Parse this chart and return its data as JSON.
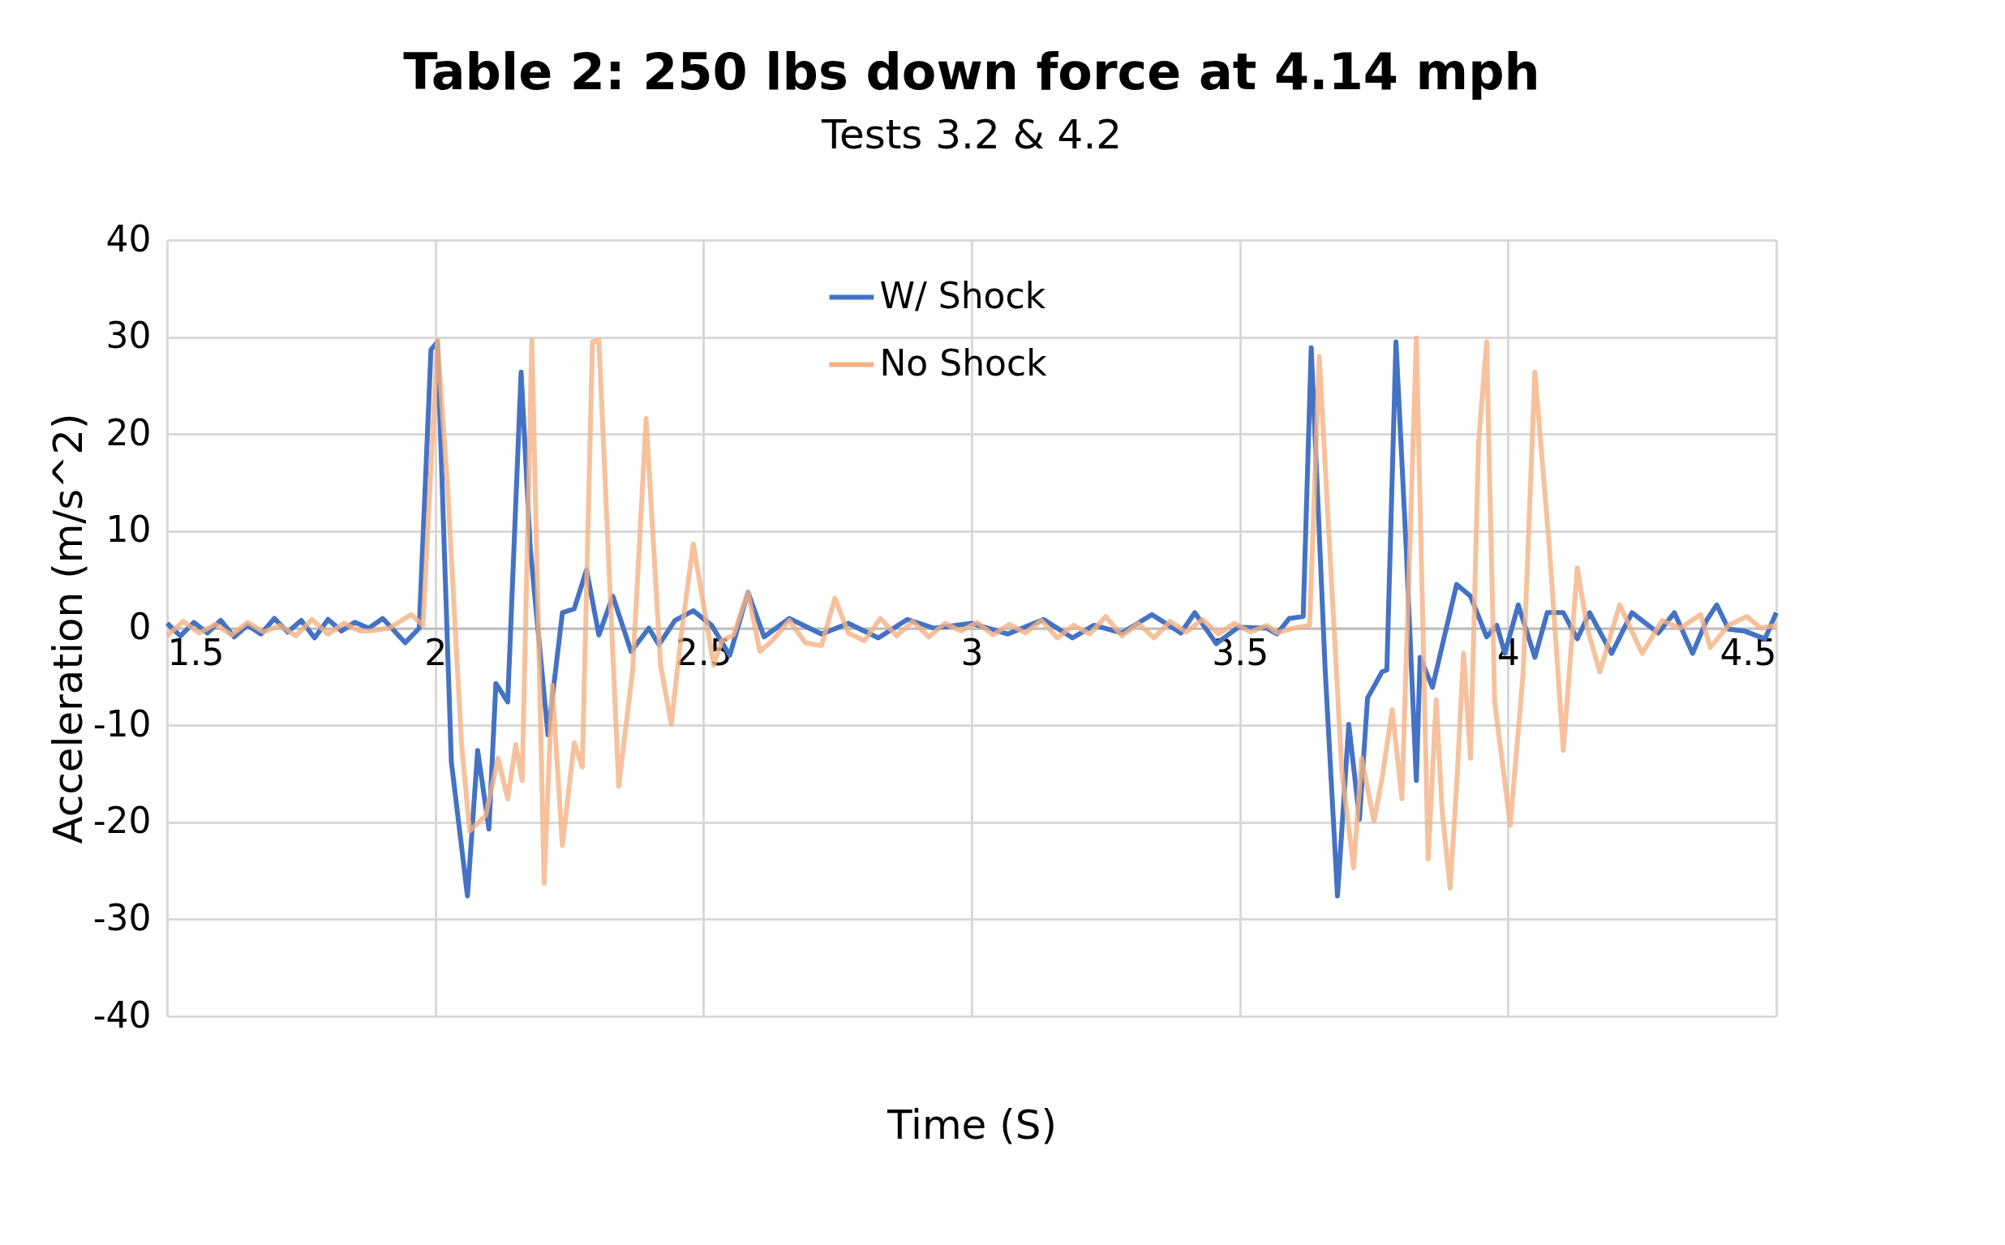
{
  "chart_data": {
    "type": "line",
    "title": "Table 2: 250 lbs down force at 4.14 mph",
    "subtitle": "Tests 3.2 & 4.2",
    "xlabel": "Time (S)",
    "ylabel": "Acceleration (m/s^2)",
    "xlim": [
      1.5,
      4.5
    ],
    "ylim": [
      -40,
      40
    ],
    "xticks": [
      1.5,
      2,
      2.5,
      3,
      3.5,
      4,
      4.5
    ],
    "yticks": [
      -40,
      -30,
      -20,
      -10,
      0,
      10,
      20,
      30,
      40
    ],
    "grid": true,
    "legend": "top",
    "marker": "none",
    "line_style": "solid",
    "series": [
      {
        "name": "W/ Shock",
        "color": "#4472c4",
        "x": [
          1.5,
          1.525,
          1.55,
          1.575,
          1.6,
          1.625,
          1.65,
          1.675,
          1.7,
          1.725,
          1.75,
          1.775,
          1.8,
          1.825,
          1.85,
          1.876,
          1.902,
          1.944,
          1.97,
          1.992,
          2.004,
          2.03,
          2.06,
          2.079,
          2.1,
          2.113,
          2.135,
          2.16,
          2.177,
          2.21,
          2.237,
          2.259,
          2.282,
          2.305,
          2.331,
          2.365,
          2.398,
          2.417,
          2.447,
          2.481,
          2.515,
          2.549,
          2.583,
          2.613,
          2.66,
          2.72,
          2.77,
          2.826,
          2.88,
          2.93,
          3.0,
          3.067,
          3.134,
          3.188,
          3.228,
          3.28,
          3.336,
          3.39,
          3.416,
          3.456,
          3.497,
          3.55,
          3.569,
          3.592,
          3.618,
          3.633,
          3.659,
          3.682,
          3.703,
          3.723,
          3.738,
          3.765,
          3.774,
          3.791,
          3.81,
          3.829,
          3.836,
          3.859,
          3.904,
          3.93,
          3.96,
          3.979,
          3.994,
          4.019,
          4.05,
          4.073,
          4.103,
          4.129,
          4.152,
          4.193,
          4.231,
          4.28,
          4.31,
          4.344,
          4.37,
          4.389,
          4.411,
          4.441,
          4.479,
          4.5
        ],
        "values": [
          0.5,
          -0.8,
          0.6,
          -0.5,
          0.8,
          -0.9,
          0.3,
          -0.6,
          1,
          -0.4,
          0.8,
          -1,
          0.9,
          -0.3,
          0.6,
          0,
          1,
          -1.5,
          0,
          28.7,
          29.5,
          -13.8,
          -27.6,
          -12.6,
          -20.7,
          -5.7,
          -7.6,
          26.4,
          8.3,
          -11,
          1.6,
          2,
          6,
          -0.7,
          3.3,
          -2.4,
          0,
          -1.7,
          0.8,
          1.8,
          0.3,
          -2.8,
          3.7,
          -0.9,
          1,
          -0.6,
          0.5,
          -1,
          0.9,
          0,
          0.5,
          -0.6,
          0.9,
          -1,
          0.3,
          -0.5,
          1.4,
          -0.5,
          1.6,
          -1.6,
          0.1,
          0,
          -0.6,
          1,
          1.2,
          28.9,
          -4.3,
          -27.6,
          -9.9,
          -19.7,
          -7.2,
          -4.5,
          -4.3,
          29.5,
          8.3,
          -15.7,
          -3,
          -6.1,
          4.5,
          3.3,
          -0.9,
          0.3,
          -2.6,
          2.4,
          -3,
          1.6,
          1.6,
          -1.1,
          1.6,
          -2.6,
          1.6,
          -0.5,
          1.6,
          -2.6,
          0.8,
          2.4,
          -0.1,
          -0.3,
          -1.1,
          1.6
        ]
      },
      {
        "name": "No Shock",
        "color": "#f4b183",
        "x": [
          1.5,
          1.53,
          1.56,
          1.59,
          1.62,
          1.65,
          1.68,
          1.71,
          1.74,
          1.77,
          1.8,
          1.83,
          1.86,
          1.876,
          1.914,
          1.955,
          1.977,
          2.004,
          2.023,
          2.049,
          2.064,
          2.094,
          2.117,
          2.135,
          2.15,
          2.162,
          2.18,
          2.203,
          2.218,
          2.237,
          2.259,
          2.274,
          2.293,
          2.305,
          2.342,
          2.368,
          2.393,
          2.42,
          2.44,
          2.459,
          2.481,
          2.519,
          2.534,
          2.556,
          2.583,
          2.605,
          2.628,
          2.66,
          2.69,
          2.72,
          2.745,
          2.77,
          2.8,
          2.83,
          2.86,
          2.89,
          2.92,
          2.95,
          2.98,
          3.01,
          3.04,
          3.07,
          3.1,
          3.13,
          3.16,
          3.19,
          3.22,
          3.25,
          3.28,
          3.31,
          3.34,
          3.37,
          3.4,
          3.43,
          3.46,
          3.49,
          3.52,
          3.55,
          3.569,
          3.6,
          3.63,
          3.648,
          3.69,
          3.712,
          3.727,
          3.75,
          3.765,
          3.784,
          3.802,
          3.829,
          3.851,
          3.866,
          3.877,
          3.892,
          3.904,
          3.917,
          3.93,
          3.945,
          3.96,
          3.975,
          4.004,
          4.028,
          4.05,
          4.077,
          4.103,
          4.129,
          4.148,
          4.171,
          4.208,
          4.25,
          4.287,
          4.321,
          4.359,
          4.377,
          4.411,
          4.445,
          4.471,
          4.5
        ],
        "values": [
          -0.8,
          0.7,
          -0.5,
          0.4,
          -0.7,
          0.6,
          -0.4,
          0.3,
          -0.8,
          0.9,
          -0.6,
          0.5,
          -0.3,
          -0.3,
          0,
          1.4,
          0.3,
          29.7,
          14.5,
          -12,
          -20.9,
          -19.3,
          -13.4,
          -17.6,
          -12,
          -15.7,
          29.7,
          -26.3,
          -5.9,
          -22.4,
          -11.8,
          -14.3,
          29.5,
          29.7,
          -16.3,
          -4.3,
          21.6,
          -3.8,
          -9.9,
          -0.5,
          8.7,
          -3.8,
          -1.3,
          -0.7,
          3.7,
          -2.4,
          -1.3,
          0.8,
          -1.5,
          -1.8,
          3.1,
          -0.5,
          -1.3,
          1,
          -0.8,
          0.7,
          -0.9,
          0.5,
          -0.3,
          0.6,
          -0.7,
          0.4,
          -0.5,
          0.8,
          -1,
          0.3,
          -0.6,
          1.2,
          -0.8,
          0.5,
          -1,
          0.7,
          -0.4,
          0.9,
          -0.6,
          0.5,
          -0.4,
          0.3,
          -0.5,
          0,
          0.3,
          28,
          -14.7,
          -24.7,
          -13.4,
          -19.9,
          -15.5,
          -8.4,
          -17.6,
          29.9,
          -23.8,
          -7.4,
          -18.8,
          -26.8,
          -16.3,
          -2.6,
          -13.4,
          19.1,
          29.5,
          -7.6,
          -20.3,
          -4.7,
          26.4,
          8.3,
          -12.6,
          6.2,
          -0.1,
          -4.5,
          2.4,
          -2.6,
          0.8,
          0,
          1.4,
          -2,
          0.3,
          1.2,
          0,
          0.3
        ]
      }
    ]
  }
}
